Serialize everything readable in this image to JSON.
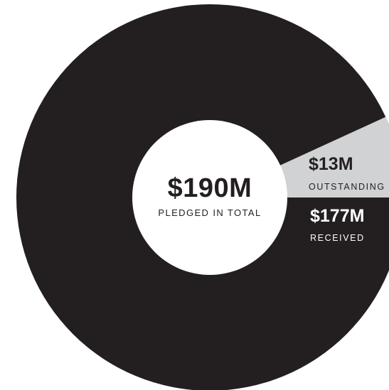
{
  "center": {
    "value": "$190M",
    "label": "PLEDGED IN TOTAL"
  },
  "slices": [
    {
      "value_text": "$13M",
      "label": "OUTSTANDING"
    },
    {
      "value_text": "$177M",
      "label": "RECEIVED"
    }
  ],
  "colors": {
    "received": "#231f20",
    "outstanding": "#d1d2d4",
    "hole": "#ffffff"
  },
  "chart_data": {
    "type": "pie",
    "title": "",
    "total": 190,
    "unit": "$M",
    "categories": [
      "OUTSTANDING",
      "RECEIVED"
    ],
    "values": [
      13,
      177
    ]
  }
}
